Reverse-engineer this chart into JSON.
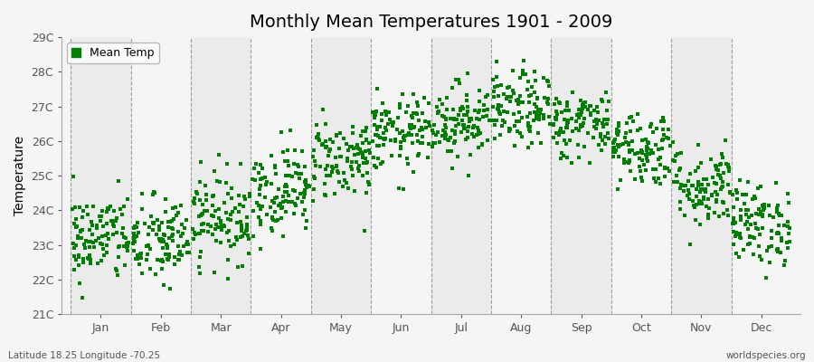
{
  "title": "Monthly Mean Temperatures 1901 - 2009",
  "ylabel": "Temperature",
  "ylim": [
    21,
    29
  ],
  "yticks": [
    21,
    22,
    23,
    24,
    25,
    26,
    27,
    28,
    29
  ],
  "ytick_labels": [
    "21C",
    "22C",
    "23C",
    "24C",
    "25C",
    "26C",
    "27C",
    "28C",
    "29C"
  ],
  "months": [
    "Jan",
    "Feb",
    "Mar",
    "Apr",
    "May",
    "Jun",
    "Jul",
    "Aug",
    "Sep",
    "Oct",
    "Nov",
    "Dec"
  ],
  "month_means": [
    23.2,
    23.1,
    23.8,
    24.6,
    25.5,
    26.2,
    26.6,
    26.9,
    26.5,
    25.8,
    24.7,
    23.6
  ],
  "month_stds": [
    0.65,
    0.65,
    0.65,
    0.65,
    0.6,
    0.55,
    0.55,
    0.55,
    0.5,
    0.55,
    0.6,
    0.6
  ],
  "n_years": 109,
  "marker_color": "#008000",
  "marker_size": 2.5,
  "bg_color": "#f5f5f5",
  "band_color1": "#ebebeb",
  "band_color2": "#f5f5f5",
  "dashed_color": "#888888",
  "title_fontsize": 14,
  "axis_fontsize": 10,
  "tick_fontsize": 9,
  "legend_label": "Mean Temp",
  "bottom_left": "Latitude 18.25 Longitude -70.25",
  "bottom_right": "worldspecies.org",
  "seed": 42
}
